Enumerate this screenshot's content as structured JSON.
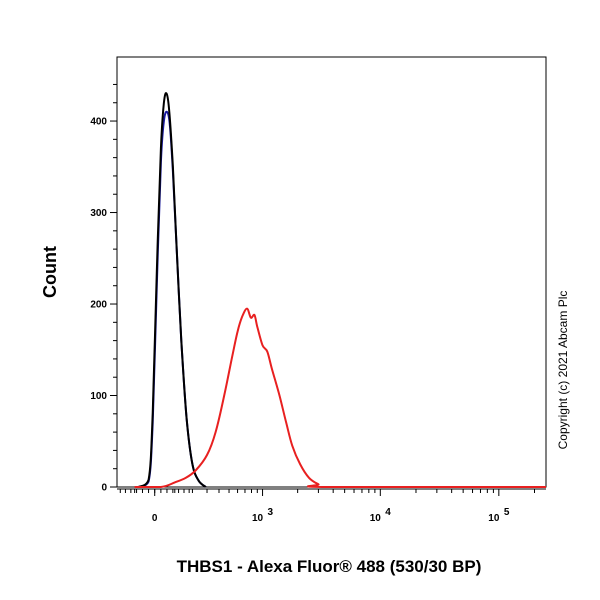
{
  "chart_data": {
    "type": "line",
    "title": "",
    "xlabel": "THBS1 - Alexa Fluor® 488 (530/30 BP)",
    "ylabel": "Count",
    "x_scale": "biexponential",
    "xlim": [
      -200,
      250000
    ],
    "ylim": [
      0,
      470
    ],
    "grid": false,
    "legend": "none",
    "x_ticks": [
      {
        "value": 0,
        "base": "0",
        "exp": ""
      },
      {
        "value": 1000,
        "base": "10",
        "exp": "3"
      },
      {
        "value": 10000,
        "base": "10",
        "exp": "4"
      },
      {
        "value": 100000,
        "base": "10",
        "exp": "5"
      }
    ],
    "y_ticks": [
      "0",
      "100",
      "200",
      "300",
      "400"
    ],
    "series": [
      {
        "color": "#1a1aa0",
        "points": [
          [
            -80,
            0
          ],
          [
            -30,
            6
          ],
          [
            -10,
            70
          ],
          [
            10,
            220
          ],
          [
            30,
            355
          ],
          [
            45,
            400
          ],
          [
            60,
            410
          ],
          [
            75,
            395
          ],
          [
            90,
            345
          ],
          [
            110,
            260
          ],
          [
            135,
            160
          ],
          [
            165,
            75
          ],
          [
            200,
            25
          ],
          [
            240,
            7
          ],
          [
            290,
            0
          ]
        ]
      },
      {
        "color": "#000000",
        "points": [
          [
            -80,
            0
          ],
          [
            -30,
            8
          ],
          [
            -10,
            80
          ],
          [
            10,
            235
          ],
          [
            30,
            370
          ],
          [
            45,
            420
          ],
          [
            58,
            430
          ],
          [
            72,
            410
          ],
          [
            90,
            350
          ],
          [
            110,
            260
          ],
          [
            135,
            160
          ],
          [
            165,
            75
          ],
          [
            200,
            25
          ],
          [
            240,
            7
          ],
          [
            290,
            0
          ]
        ]
      },
      {
        "color": "#e82020",
        "points": [
          [
            -100,
            0
          ],
          [
            30,
            0
          ],
          [
            100,
            5
          ],
          [
            160,
            10
          ],
          [
            220,
            18
          ],
          [
            300,
            35
          ],
          [
            370,
            60
          ],
          [
            450,
            100
          ],
          [
            530,
            140
          ],
          [
            600,
            170
          ],
          [
            660,
            186
          ],
          [
            730,
            195
          ],
          [
            790,
            185
          ],
          [
            850,
            188
          ],
          [
            900,
            175
          ],
          [
            1000,
            155
          ],
          [
            1100,
            148
          ],
          [
            1200,
            130
          ],
          [
            1400,
            100
          ],
          [
            1600,
            70
          ],
          [
            1800,
            45
          ],
          [
            2100,
            25
          ],
          [
            2500,
            10
          ],
          [
            3000,
            3
          ],
          [
            3500,
            0
          ],
          [
            250000,
            0
          ]
        ]
      }
    ]
  },
  "copyright": "Copyright (c) 2021 Abcam Plc"
}
